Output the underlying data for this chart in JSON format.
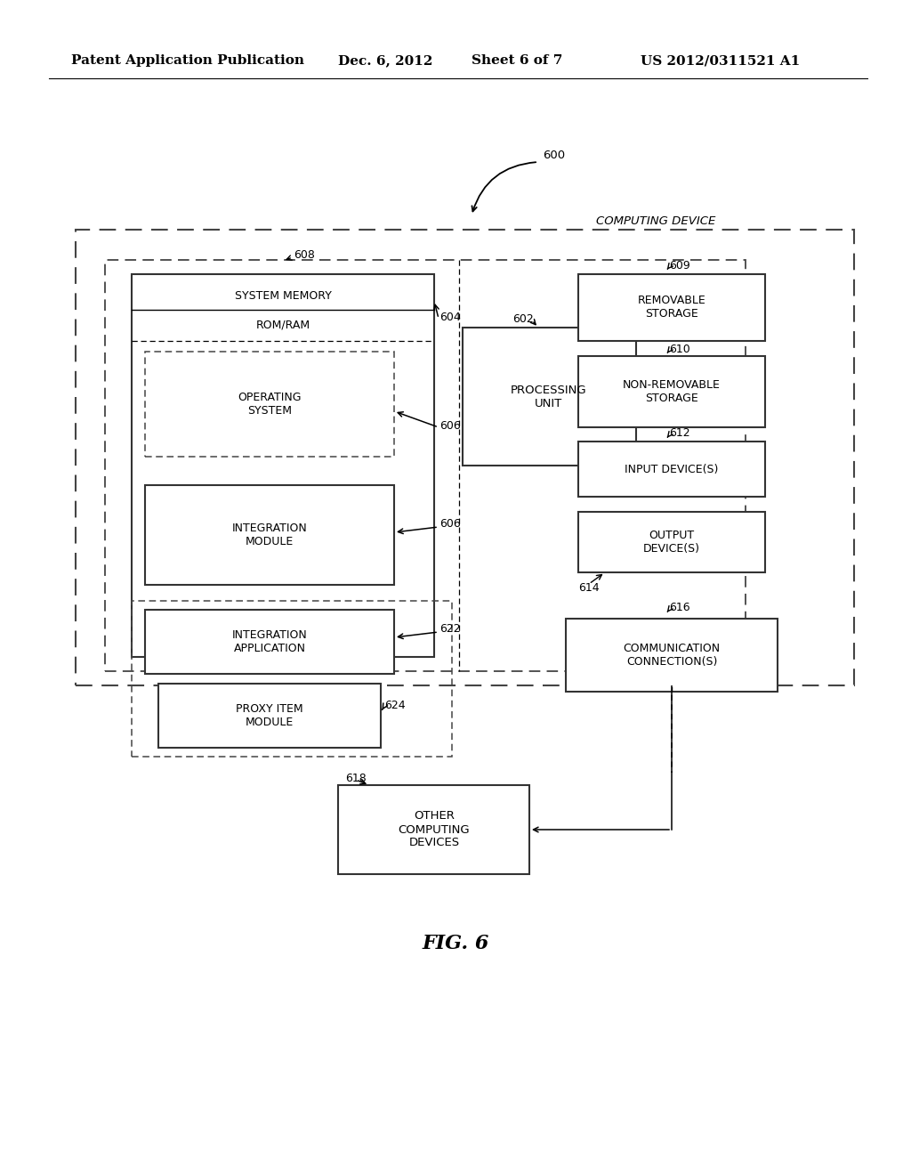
{
  "bg_color": "#ffffff",
  "header_text": "Patent Application Publication",
  "header_date": "Dec. 6, 2012",
  "header_sheet": "Sheet 6 of 7",
  "header_patent": "US 2012/0311521 A1",
  "fig_label": "FIG. 6",
  "title_label": "COMPUTING DEVICE",
  "ref_600": "600",
  "ref_608": "608",
  "ref_609": "609",
  "ref_604": "604",
  "ref_602": "602",
  "ref_606a": "606",
  "ref_606b": "606",
  "ref_610": "610",
  "ref_612": "612",
  "ref_614": "614",
  "ref_616": "616",
  "ref_622": "622",
  "ref_624": "624",
  "ref_618": "618",
  "box_system_memory": "SYSTEM MEMORY",
  "box_romram": "ROM/RAM",
  "box_os": "OPERATING\nSYSTEM",
  "box_processing": "PROCESSING\nUNIT",
  "box_integration_module": "INTEGRATION\nMODULE",
  "box_integration_app": "INTEGRATION\nAPPLICATION",
  "box_proxy": "PROXY ITEM\nMODULE",
  "box_removable": "REMOVABLE\nSTORAGE",
  "box_nonremovable": "NON-REMOVABLE\nSTORAGE",
  "box_input": "INPUT DEVICE(S)",
  "box_output": "OUTPUT\nDEVICE(S)",
  "box_comm": "COMMUNICATION\nCONNECTION(S)",
  "box_other": "OTHER\nCOMPUTING\nDEVICES"
}
